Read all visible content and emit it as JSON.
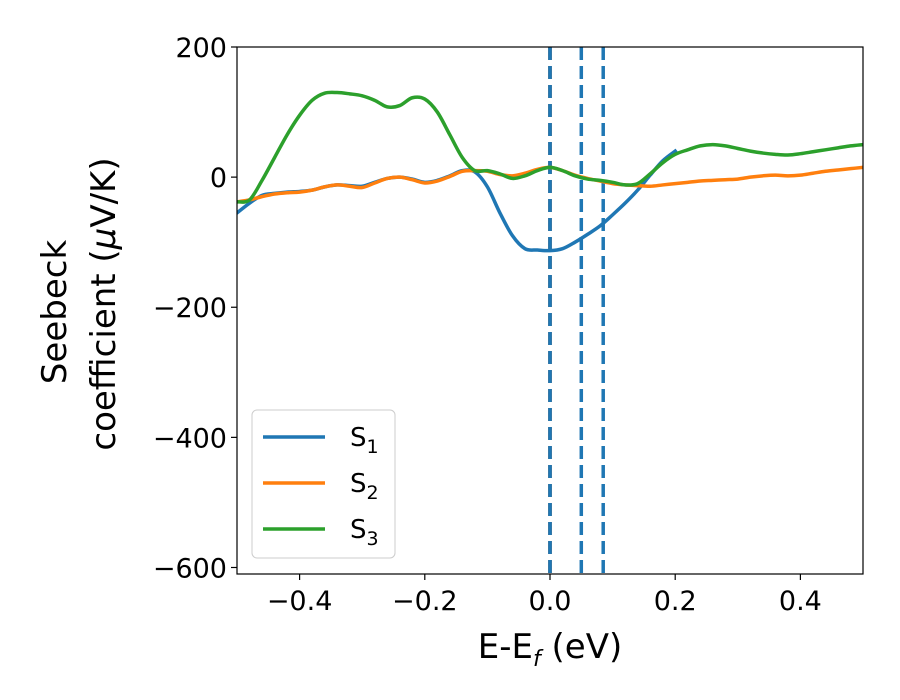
{
  "chart_data": {
    "type": "line",
    "xlabel": "E-E",
    "xlabel_sub": "f",
    "xlabel_unit": " (eV)",
    "ylabel_line1": "Seebeck",
    "ylabel_line2": "coefficient  (",
    "ylabel_mu": "μ",
    "ylabel_unit": "V/K)",
    "xlim": [
      -0.5,
      0.5
    ],
    "ylim": [
      -610,
      200
    ],
    "xticks": [
      -0.4,
      -0.2,
      0.0,
      0.2,
      0.4
    ],
    "xtick_labels": [
      "−0.4",
      "−0.2",
      "0.0",
      "0.2",
      "0.4"
    ],
    "yticks": [
      200,
      0,
      -200,
      -400,
      -600
    ],
    "ytick_labels": [
      "200",
      "0",
      "−200",
      "−400",
      "−600"
    ],
    "grid": false,
    "legend_position": "lower-left",
    "vlines": [
      {
        "x": 0.0,
        "color": "#000000",
        "style": "dashed"
      },
      {
        "x": 0.0,
        "color": "#1f77b4",
        "style": "dashed"
      },
      {
        "x": 0.05,
        "color": "#1f77b4",
        "style": "dashed"
      },
      {
        "x": 0.085,
        "color": "#1f77b4",
        "style": "dashed"
      }
    ],
    "series": [
      {
        "name": "S",
        "sub": "1",
        "color": "#1f77b4",
        "x": [
          -0.5,
          -0.48,
          -0.46,
          -0.44,
          -0.42,
          -0.4,
          -0.38,
          -0.36,
          -0.34,
          -0.32,
          -0.3,
          -0.28,
          -0.26,
          -0.24,
          -0.22,
          -0.2,
          -0.18,
          -0.16,
          -0.14,
          -0.12,
          -0.1,
          -0.08,
          -0.06,
          -0.04,
          -0.02,
          0.0,
          0.02,
          0.04,
          0.06,
          0.08,
          0.1,
          0.12,
          0.14,
          0.16,
          0.18,
          0.2
        ],
        "y": [
          -55,
          -40,
          -28,
          -25,
          -23,
          -22,
          -20,
          -15,
          -12,
          -13,
          -14,
          -8,
          -2,
          0,
          -3,
          -8,
          -5,
          2,
          10,
          8,
          -15,
          -55,
          -90,
          -110,
          -112,
          -113,
          -110,
          -100,
          -88,
          -75,
          -58,
          -40,
          -20,
          3,
          25,
          40
        ]
      },
      {
        "name": "S",
        "sub": "2",
        "color": "#ff7f0e",
        "x": [
          -0.5,
          -0.48,
          -0.46,
          -0.44,
          -0.42,
          -0.4,
          -0.38,
          -0.36,
          -0.34,
          -0.32,
          -0.3,
          -0.28,
          -0.26,
          -0.24,
          -0.22,
          -0.2,
          -0.18,
          -0.16,
          -0.14,
          -0.12,
          -0.1,
          -0.08,
          -0.06,
          -0.04,
          -0.02,
          0.0,
          0.02,
          0.04,
          0.06,
          0.08,
          0.1,
          0.12,
          0.14,
          0.16,
          0.18,
          0.2,
          0.22,
          0.24,
          0.26,
          0.28,
          0.3,
          0.32,
          0.34,
          0.36,
          0.38,
          0.4,
          0.42,
          0.44,
          0.46,
          0.48,
          0.5
        ],
        "y": [
          -38,
          -35,
          -30,
          -26,
          -24,
          -23,
          -20,
          -15,
          -12,
          -14,
          -16,
          -9,
          -2,
          0,
          -4,
          -9,
          -6,
          1,
          9,
          10,
          9,
          4,
          2,
          6,
          12,
          15,
          10,
          3,
          -2,
          -6,
          -10,
          -12,
          -13,
          -14,
          -12,
          -10,
          -8,
          -6,
          -5,
          -4,
          -3,
          0,
          2,
          3,
          2,
          3,
          6,
          9,
          11,
          13,
          15
        ]
      },
      {
        "name": "S",
        "sub": "3",
        "color": "#2ca02c",
        "x": [
          -0.5,
          -0.48,
          -0.46,
          -0.44,
          -0.42,
          -0.4,
          -0.38,
          -0.36,
          -0.34,
          -0.32,
          -0.3,
          -0.28,
          -0.26,
          -0.24,
          -0.22,
          -0.2,
          -0.18,
          -0.16,
          -0.14,
          -0.12,
          -0.1,
          -0.08,
          -0.06,
          -0.04,
          -0.02,
          0.0,
          0.02,
          0.04,
          0.06,
          0.08,
          0.1,
          0.12,
          0.14,
          0.16,
          0.18,
          0.2,
          0.22,
          0.24,
          0.26,
          0.28,
          0.3,
          0.32,
          0.34,
          0.36,
          0.38,
          0.4,
          0.42,
          0.44,
          0.46,
          0.48,
          0.5
        ],
        "y": [
          -38,
          -35,
          -5,
          30,
          65,
          95,
          118,
          129,
          130,
          128,
          125,
          118,
          108,
          110,
          122,
          120,
          100,
          65,
          30,
          10,
          10,
          5,
          -2,
          2,
          10,
          15,
          10,
          2,
          -3,
          -5,
          -8,
          -12,
          -10,
          5,
          22,
          35,
          42,
          48,
          50,
          48,
          44,
          40,
          37,
          35,
          34,
          36,
          39,
          42,
          45,
          48,
          50
        ]
      }
    ]
  }
}
